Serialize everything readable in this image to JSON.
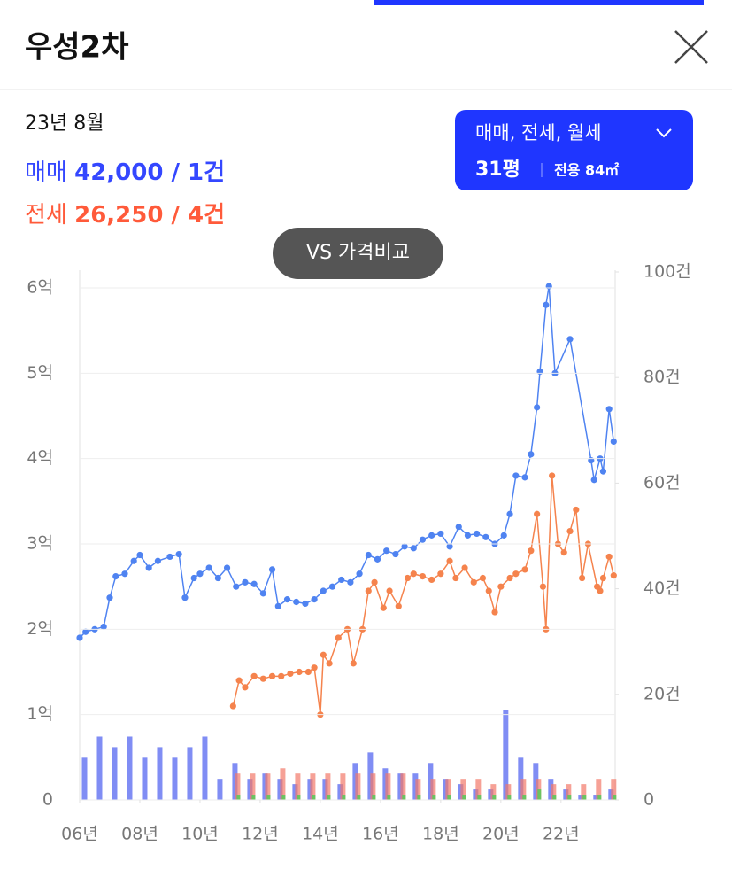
{
  "header": {
    "title": "우성2차"
  },
  "summary": {
    "date": "23년 8월",
    "sale": {
      "label": "매매",
      "text": "42,000 / 1건"
    },
    "jeonse": {
      "label": "전세",
      "text": "26,250 / 4건"
    }
  },
  "filter": {
    "types": "매매, 전세, 월세",
    "size": "31평",
    "area": "전용 84㎡"
  },
  "compare_button": "VS 가격비교",
  "chart_data": {
    "type": "line",
    "grid": true,
    "xlim": [
      2006,
      2023.8
    ],
    "xticks": [
      {
        "value": 2006,
        "label": "06년"
      },
      {
        "value": 2008,
        "label": "08년"
      },
      {
        "value": 2010,
        "label": "10년"
      },
      {
        "value": 2012,
        "label": "12년"
      },
      {
        "value": 2014,
        "label": "14년"
      },
      {
        "value": 2016,
        "label": "16년"
      },
      {
        "value": 2018,
        "label": "18년"
      },
      {
        "value": 2020,
        "label": "20년"
      },
      {
        "value": 2022,
        "label": "22년"
      }
    ],
    "ylim": [
      0,
      6
    ],
    "yticks": [
      0,
      {
        "value": 1,
        "label": "1억"
      },
      {
        "value": 2,
        "label": "2억"
      },
      {
        "value": 3,
        "label": "3억"
      },
      {
        "value": 4,
        "label": "4억"
      },
      {
        "value": 5,
        "label": "5억"
      },
      {
        "value": 6,
        "label": "6억"
      }
    ],
    "y2lim": [
      0,
      100
    ],
    "y2ticks": [
      0,
      {
        "value": 20,
        "label": "20건"
      },
      {
        "value": 40,
        "label": "40건"
      },
      {
        "value": 60,
        "label": "60건"
      },
      {
        "value": 80,
        "label": "80건"
      },
      {
        "value": 100,
        "label": "100건"
      }
    ],
    "series": [
      {
        "color": "#4f83f1",
        "x": [
          2006.0,
          2006.2,
          2006.5,
          2006.8,
          2007.0,
          2007.2,
          2007.5,
          2007.8,
          2008.0,
          2008.3,
          2008.6,
          2009.0,
          2009.3,
          2009.5,
          2009.8,
          2010.0,
          2010.3,
          2010.6,
          2010.9,
          2011.2,
          2011.5,
          2011.8,
          2012.1,
          2012.4,
          2012.6,
          2012.9,
          2013.2,
          2013.5,
          2013.8,
          2014.1,
          2014.4,
          2014.7,
          2015.0,
          2015.3,
          2015.6,
          2015.9,
          2016.2,
          2016.5,
          2016.8,
          2017.1,
          2017.4,
          2017.7,
          2018.0,
          2018.3,
          2018.6,
          2018.9,
          2019.2,
          2019.5,
          2019.8,
          2020.1,
          2020.3,
          2020.5,
          2020.8,
          2021.0,
          2021.2,
          2021.3,
          2021.5,
          2021.6,
          2021.8,
          2022.3,
          2023.0,
          2023.1,
          2023.3,
          2023.4,
          2023.6,
          2023.75
        ],
        "values": [
          1.9,
          1.97,
          2.0,
          2.03,
          2.37,
          2.62,
          2.65,
          2.8,
          2.87,
          2.72,
          2.8,
          2.85,
          2.88,
          2.37,
          2.6,
          2.65,
          2.72,
          2.6,
          2.72,
          2.5,
          2.55,
          2.53,
          2.42,
          2.7,
          2.27,
          2.35,
          2.32,
          2.3,
          2.35,
          2.45,
          2.5,
          2.58,
          2.55,
          2.65,
          2.87,
          2.82,
          2.92,
          2.88,
          2.97,
          2.95,
          3.05,
          3.1,
          3.12,
          2.97,
          3.2,
          3.1,
          3.12,
          3.08,
          3.0,
          3.1,
          3.35,
          3.8,
          3.78,
          4.05,
          4.6,
          5.02,
          5.8,
          6.02,
          5.0,
          5.4,
          3.98,
          3.75,
          4.0,
          3.85,
          4.58,
          4.2
        ]
      },
      {
        "color": "#f5834d",
        "x": [
          2011.1,
          2011.3,
          2011.5,
          2011.8,
          2012.1,
          2012.4,
          2012.7,
          2013.0,
          2013.3,
          2013.6,
          2013.8,
          2014.0,
          2014.1,
          2014.3,
          2014.6,
          2014.9,
          2015.1,
          2015.4,
          2015.6,
          2015.8,
          2016.1,
          2016.3,
          2016.6,
          2016.9,
          2017.1,
          2017.4,
          2017.7,
          2018.0,
          2018.3,
          2018.5,
          2018.8,
          2019.1,
          2019.4,
          2019.6,
          2019.8,
          2020.0,
          2020.3,
          2020.5,
          2020.8,
          2021.0,
          2021.2,
          2021.4,
          2021.5,
          2021.7,
          2021.9,
          2022.1,
          2022.3,
          2022.5,
          2022.7,
          2022.9,
          2023.2,
          2023.3,
          2023.4,
          2023.6,
          2023.75
        ],
        "values": [
          1.1,
          1.4,
          1.32,
          1.45,
          1.42,
          1.45,
          1.45,
          1.48,
          1.5,
          1.5,
          1.55,
          1.0,
          1.7,
          1.6,
          1.9,
          2.0,
          1.6,
          2.0,
          2.45,
          2.55,
          2.25,
          2.45,
          2.27,
          2.6,
          2.65,
          2.62,
          2.58,
          2.65,
          2.8,
          2.6,
          2.72,
          2.55,
          2.6,
          2.45,
          2.2,
          2.5,
          2.6,
          2.65,
          2.7,
          2.92,
          3.35,
          2.5,
          2.0,
          3.8,
          3.0,
          2.9,
          3.15,
          3.4,
          2.6,
          3.0,
          2.5,
          2.45,
          2.6,
          2.85,
          2.63
        ]
      }
    ],
    "volume": {
      "type": "bar",
      "x": [
        2006.25,
        2006.75,
        2007.25,
        2007.75,
        2008.25,
        2008.75,
        2009.25,
        2009.75,
        2010.25,
        2010.75,
        2011.25,
        2011.75,
        2012.25,
        2012.75,
        2013.25,
        2013.75,
        2014.25,
        2014.75,
        2015.25,
        2015.75,
        2016.25,
        2016.75,
        2017.25,
        2017.75,
        2018.25,
        2018.75,
        2019.25,
        2019.75,
        2020.25,
        2020.75,
        2021.25,
        2021.75,
        2022.25,
        2022.75,
        2023.25,
        2023.75
      ],
      "series": [
        {
          "color": "#4a5cf0",
          "axis": "y2",
          "values": [
            8,
            12,
            10,
            12,
            8,
            10,
            8,
            10,
            12,
            4,
            7,
            4,
            5,
            4,
            3,
            4,
            4,
            3,
            7,
            9,
            6,
            5,
            5,
            7,
            4,
            3,
            2,
            2,
            17,
            8,
            7,
            4,
            2,
            1,
            1,
            2
          ]
        },
        {
          "color": "#f2796a",
          "axis": "y2",
          "values": [
            null,
            null,
            null,
            null,
            null,
            null,
            null,
            null,
            null,
            null,
            5,
            5,
            5,
            6,
            5,
            5,
            5,
            5,
            5,
            5,
            5,
            5,
            4,
            4,
            4,
            4,
            4,
            3,
            3,
            4,
            4,
            3,
            3,
            3,
            4,
            4
          ]
        },
        {
          "color": "#5cc85a",
          "axis": "y2",
          "values": [
            null,
            null,
            null,
            null,
            null,
            null,
            null,
            null,
            null,
            null,
            1,
            1,
            1,
            1,
            1,
            1,
            1,
            1,
            1,
            1,
            1,
            1,
            1,
            1,
            1,
            1,
            1,
            1,
            1,
            1,
            2,
            1,
            1,
            1,
            1,
            1
          ]
        }
      ]
    }
  }
}
